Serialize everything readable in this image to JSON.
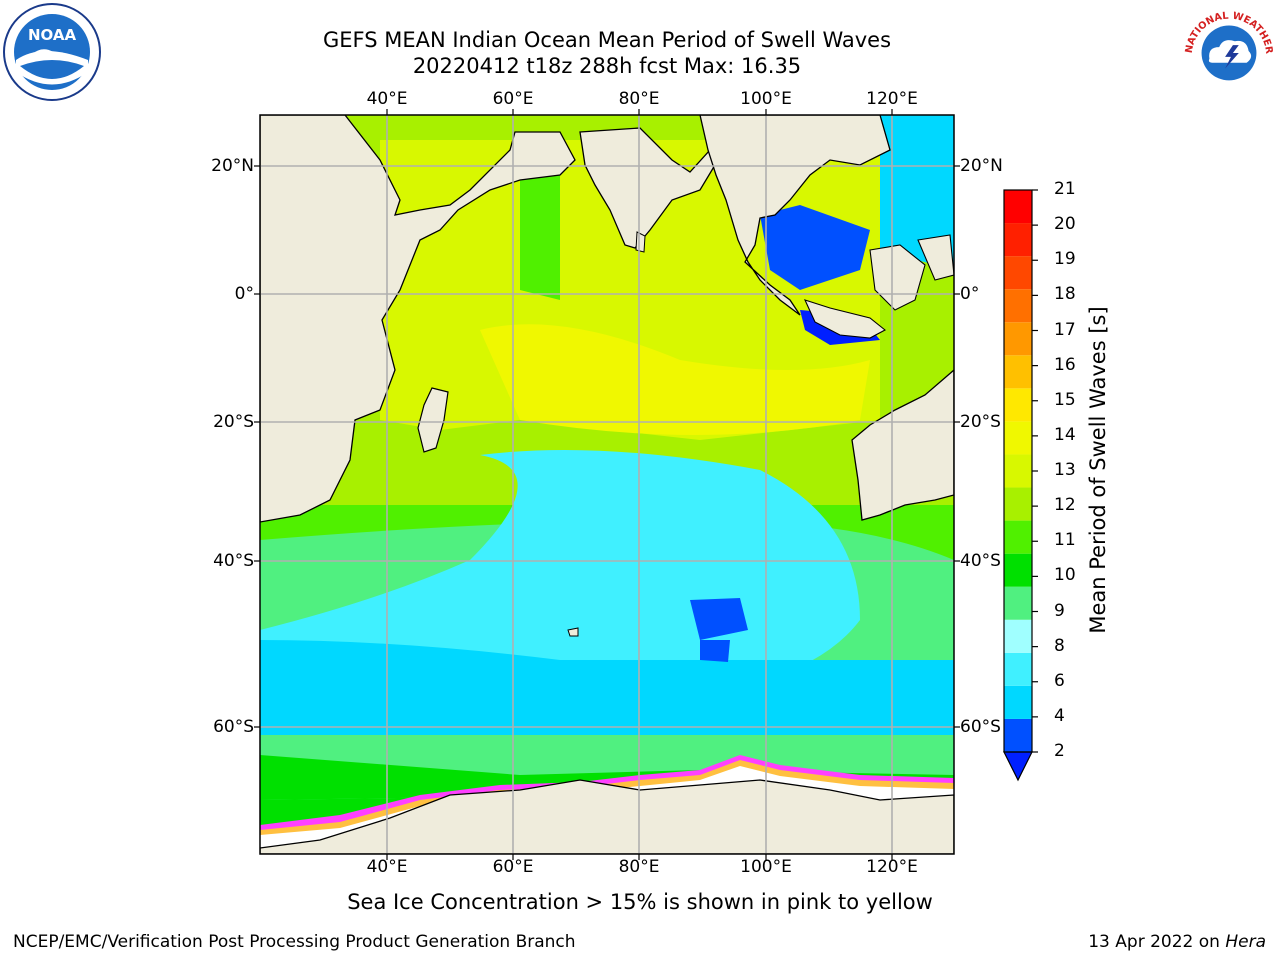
{
  "title": "GEFS MEAN Indian Ocean Mean Period of Swell Waves",
  "subtitle": "20220412 t18z 288h fcst   Max: 16.35",
  "map": {
    "projection": "lat-lon",
    "lon_ticks": [
      "40°E",
      "60°E",
      "80°E",
      "100°E",
      "120°E"
    ],
    "lat_ticks": [
      "20°N",
      "0°",
      "20°S",
      "40°S",
      "60°S"
    ],
    "grid": true
  },
  "colorbar": {
    "label": "Mean Period of Swell Waves [s]",
    "ticks": [
      "21",
      "20",
      "19",
      "18",
      "17",
      "16",
      "15",
      "14",
      "13",
      "12",
      "11",
      "10",
      "9",
      "8",
      "6",
      "4",
      "2"
    ],
    "colors": [
      "#0050ff",
      "#00d8ff",
      "#40f0ff",
      "#a0ffff",
      "#50f080",
      "#00e000",
      "#50f000",
      "#a8f000",
      "#d8f800",
      "#f0f800",
      "#ffe800",
      "#ffc000",
      "#ff9800",
      "#ff7000",
      "#ff4800",
      "#ff2000",
      "#ff0000"
    ],
    "extend_color": "#0020ff"
  },
  "note": "Sea Ice Concentration > 15% is shown in pink to yellow",
  "footer": {
    "left": "NCEP/EMC/Verification Post Processing Product Generation Branch",
    "right_date": "13 Apr 2022 on ",
    "right_host": "Hera"
  },
  "logos": {
    "left": "NOAA",
    "right": "NATIONAL WEATHER SERVICE"
  },
  "colors": {
    "land": "#efecdc",
    "grid": "#b0b0b0",
    "ice": "#ffffff"
  }
}
